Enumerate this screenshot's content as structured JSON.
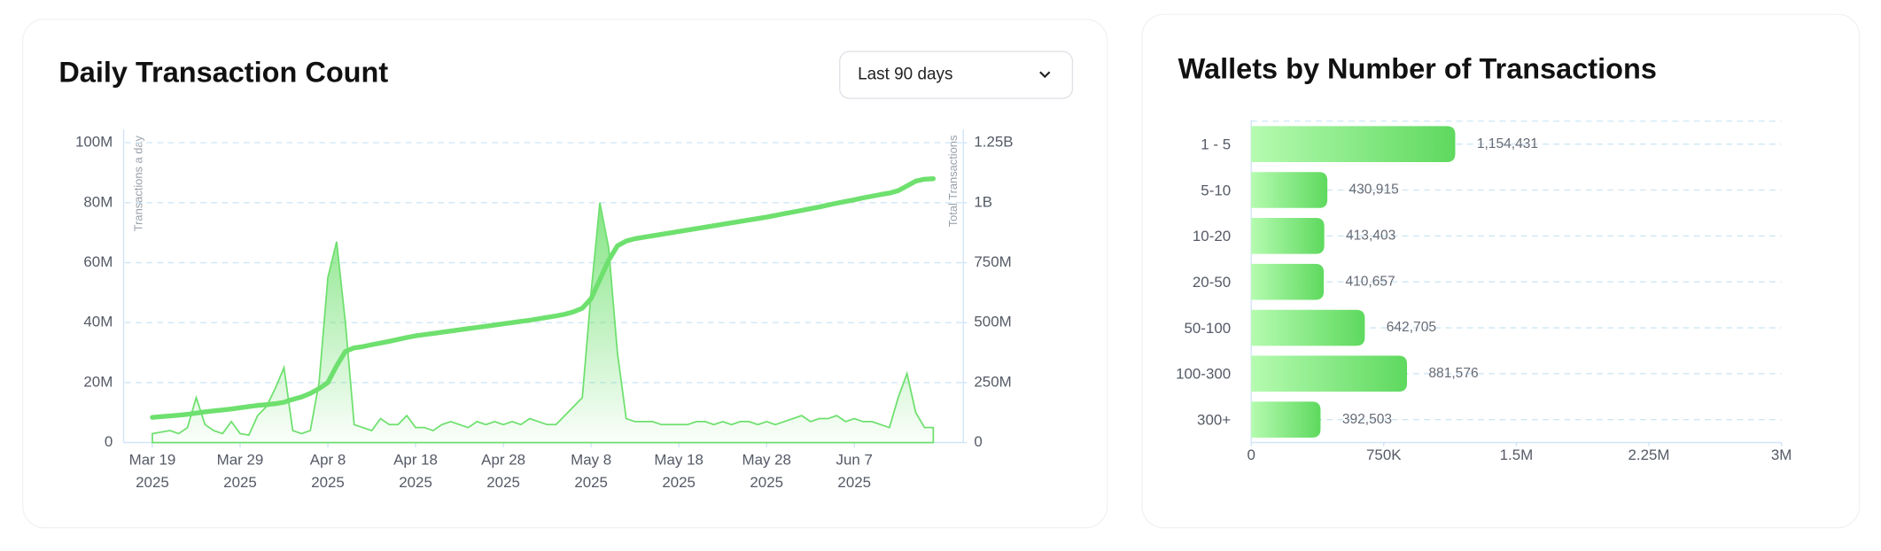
{
  "dropdown": "Last 90 days",
  "chart_data": [
    {
      "type": "dual-line-area",
      "title": "Daily Transaction Count",
      "ylabel": "Transactions a day",
      "y2label": "Total Transactions",
      "x": [
        "2025-03-19",
        "2025-03-20",
        "2025-03-21",
        "2025-03-22",
        "2025-03-23",
        "2025-03-24",
        "2025-03-25",
        "2025-03-26",
        "2025-03-27",
        "2025-03-28",
        "2025-03-29",
        "2025-03-30",
        "2025-03-31",
        "2025-04-01",
        "2025-04-02",
        "2025-04-03",
        "2025-04-04",
        "2025-04-05",
        "2025-04-06",
        "2025-04-07",
        "2025-04-08",
        "2025-04-09",
        "2025-04-10",
        "2025-04-11",
        "2025-04-12",
        "2025-04-13",
        "2025-04-14",
        "2025-04-15",
        "2025-04-16",
        "2025-04-17",
        "2025-04-18",
        "2025-04-19",
        "2025-04-20",
        "2025-04-21",
        "2025-04-22",
        "2025-04-23",
        "2025-04-24",
        "2025-04-25",
        "2025-04-26",
        "2025-04-27",
        "2025-04-28",
        "2025-04-29",
        "2025-04-30",
        "2025-05-01",
        "2025-05-02",
        "2025-05-03",
        "2025-05-04",
        "2025-05-05",
        "2025-05-06",
        "2025-05-07",
        "2025-05-08",
        "2025-05-09",
        "2025-05-10",
        "2025-05-11",
        "2025-05-12",
        "2025-05-13",
        "2025-05-14",
        "2025-05-15",
        "2025-05-16",
        "2025-05-17",
        "2025-05-18",
        "2025-05-19",
        "2025-05-20",
        "2025-05-21",
        "2025-05-22",
        "2025-05-23",
        "2025-05-24",
        "2025-05-25",
        "2025-05-26",
        "2025-05-27",
        "2025-05-28",
        "2025-05-29",
        "2025-05-30",
        "2025-05-31",
        "2025-06-01",
        "2025-06-02",
        "2025-06-03",
        "2025-06-04",
        "2025-06-05",
        "2025-06-06",
        "2025-06-07",
        "2025-06-08",
        "2025-06-09",
        "2025-06-10",
        "2025-06-11",
        "2025-06-12",
        "2025-06-13",
        "2025-06-14",
        "2025-06-15",
        "2025-06-16"
      ],
      "series": [
        {
          "kind": "area",
          "color": "#6ee06e",
          "values": [
            3,
            3.5,
            4,
            3,
            5,
            15,
            6,
            4,
            3,
            7,
            3,
            2.5,
            9,
            12,
            18,
            25,
            4,
            3,
            4,
            20,
            55,
            67,
            40,
            6,
            5,
            4,
            8,
            6,
            6,
            9,
            5,
            5,
            4,
            6,
            7,
            6,
            5,
            7,
            6,
            7,
            6,
            7,
            6,
            8,
            7,
            6,
            6,
            9,
            12,
            15,
            50,
            80,
            65,
            30,
            8,
            7,
            7,
            7,
            6,
            6,
            6,
            6,
            7,
            7,
            6,
            7,
            6,
            7,
            7,
            6,
            7,
            6,
            7,
            8,
            9,
            7,
            8,
            8,
            9,
            7,
            8,
            7,
            7,
            6,
            5,
            15,
            23,
            10,
            5,
            5
          ]
        },
        {
          "kind": "line",
          "axis": "y2",
          "color": "#6ee06e",
          "values": [
            105,
            108,
            111,
            114,
            118,
            123,
            128,
            132,
            136,
            140,
            145,
            150,
            155,
            158,
            162,
            168,
            180,
            190,
            205,
            225,
            250,
            320,
            380,
            395,
            400,
            408,
            415,
            422,
            430,
            438,
            445,
            450,
            455,
            460,
            465,
            470,
            475,
            480,
            485,
            490,
            495,
            500,
            505,
            510,
            516,
            522,
            528,
            535,
            545,
            560,
            600,
            680,
            760,
            820,
            840,
            850,
            856,
            862,
            868,
            874,
            880,
            886,
            892,
            898,
            904,
            910,
            916,
            922,
            928,
            934,
            940,
            947,
            954,
            961,
            968,
            975,
            982,
            990,
            998,
            1005,
            1012,
            1020,
            1027,
            1034,
            1040,
            1050,
            1070,
            1090,
            1098,
            1100
          ]
        }
      ],
      "xticks": [
        {
          "value": "2025-03-19",
          "label": "Mar 19",
          "year": "2025"
        },
        {
          "value": "2025-03-29",
          "label": "Mar 29",
          "year": "2025"
        },
        {
          "value": "2025-04-08",
          "label": "Apr 8",
          "year": "2025"
        },
        {
          "value": "2025-04-18",
          "label": "Apr 18",
          "year": "2025"
        },
        {
          "value": "2025-04-28",
          "label": "Apr 28",
          "year": "2025"
        },
        {
          "value": "2025-05-08",
          "label": "May 8",
          "year": "2025"
        },
        {
          "value": "2025-05-18",
          "label": "May 18",
          "year": "2025"
        },
        {
          "value": "2025-05-28",
          "label": "May 28",
          "year": "2025"
        },
        {
          "value": "2025-06-07",
          "label": "Jun 7",
          "year": "2025"
        }
      ],
      "ylim": [
        0,
        100
      ],
      "yticks": [
        0,
        {
          "value": 20,
          "label": "20M"
        },
        {
          "value": 40,
          "label": "40M"
        },
        {
          "value": 60,
          "label": "60M"
        },
        {
          "value": 80,
          "label": "80M"
        },
        {
          "value": 100,
          "label": "100M"
        }
      ],
      "y2lim": [
        0,
        1250
      ],
      "y2ticks": [
        0,
        {
          "value": 250,
          "label": "250M"
        },
        {
          "value": 500,
          "label": "500M"
        },
        {
          "value": 750,
          "label": "750M"
        },
        {
          "value": 1000,
          "label": "1B"
        },
        {
          "value": 1250,
          "label": "1.25B"
        }
      ],
      "grid": true
    },
    {
      "type": "hbar",
      "title": "Wallets by Number of Transactions",
      "categories": [
        "1 - 5",
        "5-10",
        "10-20",
        "20-50",
        "50-100",
        "100-300",
        "300+"
      ],
      "values": [
        1154431,
        430915,
        413403,
        410657,
        642705,
        881576,
        392503
      ],
      "value_labels": [
        "1,154,431",
        "430,915",
        "413,403",
        "410,657",
        "642,705",
        "881,576",
        "392,503"
      ],
      "colors": [
        "#b5fbb0",
        "#5ed95e"
      ],
      "xlim": [
        0,
        3000000
      ],
      "xticks": [
        0,
        {
          "value": 750000,
          "label": "750K"
        },
        {
          "value": 1500000,
          "label": "1.5M"
        },
        {
          "value": 2250000,
          "label": "2.25M"
        },
        {
          "value": 3000000,
          "label": "3M"
        }
      ],
      "grid": true
    }
  ]
}
